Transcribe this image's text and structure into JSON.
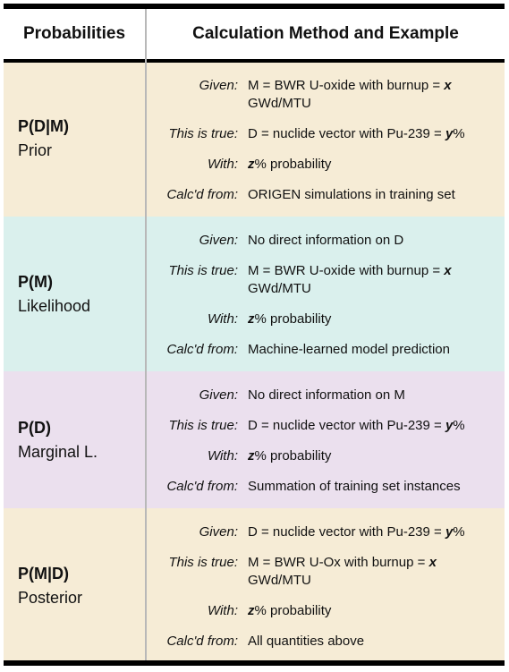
{
  "header": {
    "col1": "Probabilities",
    "col2": "Calculation Method and Example"
  },
  "colors": {
    "prior_bg": "#f6ecd6",
    "likelihood_bg": "#daf0ed",
    "marginal_bg": "#ebe0ee",
    "posterior_bg": "#f6ecd6",
    "rule": "#000000",
    "divider": "#b8b8b8"
  },
  "rows": [
    {
      "symbol": "P(D|M)",
      "name": "Prior",
      "given_key": "Given:",
      "given_pre": "M = BWR U-oxide with burnup = ",
      "given_var": "x",
      "given_post": " GWd/MTU",
      "true_key": "This is true:",
      "true_pre": "D = nuclide vector with Pu-239 = ",
      "true_var": "y",
      "true_post": "%",
      "with_key": "With:",
      "with_var": "z",
      "with_post": "% probability",
      "calc_key": "Calc'd from:",
      "calc_val": "ORIGEN simulations in training set"
    },
    {
      "symbol": "P(M)",
      "name": "Likelihood",
      "given_key": "Given:",
      "given_val": "No direct information on D",
      "true_key": "This is true:",
      "true_pre": "M = BWR U-oxide with burnup = ",
      "true_var": "x",
      "true_post": " GWd/MTU",
      "with_key": "With:",
      "with_var": "z",
      "with_post": "% probability",
      "calc_key": "Calc'd from:",
      "calc_val": "Machine-learned model prediction"
    },
    {
      "symbol": "P(D)",
      "name": "Marginal L.",
      "given_key": "Given:",
      "given_val": "No direct information on M",
      "true_key": "This is true:",
      "true_pre": "D = nuclide vector with Pu-239 = ",
      "true_var": "y",
      "true_post": "%",
      "with_key": "With:",
      "with_var": "z",
      "with_post": "% probability",
      "calc_key": "Calc'd from:",
      "calc_val": "Summation of training set instances"
    },
    {
      "symbol": "P(M|D)",
      "name": "Posterior",
      "given_key": "Given:",
      "given_pre": "D = nuclide vector with Pu-239 = ",
      "given_var": "y",
      "given_post": "%",
      "true_key": "This is true:",
      "true_pre": "M = BWR U-Ox with burnup = ",
      "true_var": "x",
      "true_post": " GWd/MTU",
      "with_key": "With:",
      "with_var": "z",
      "with_post": "% probability",
      "calc_key": "Calc'd from:",
      "calc_val": "All quantities above"
    }
  ]
}
